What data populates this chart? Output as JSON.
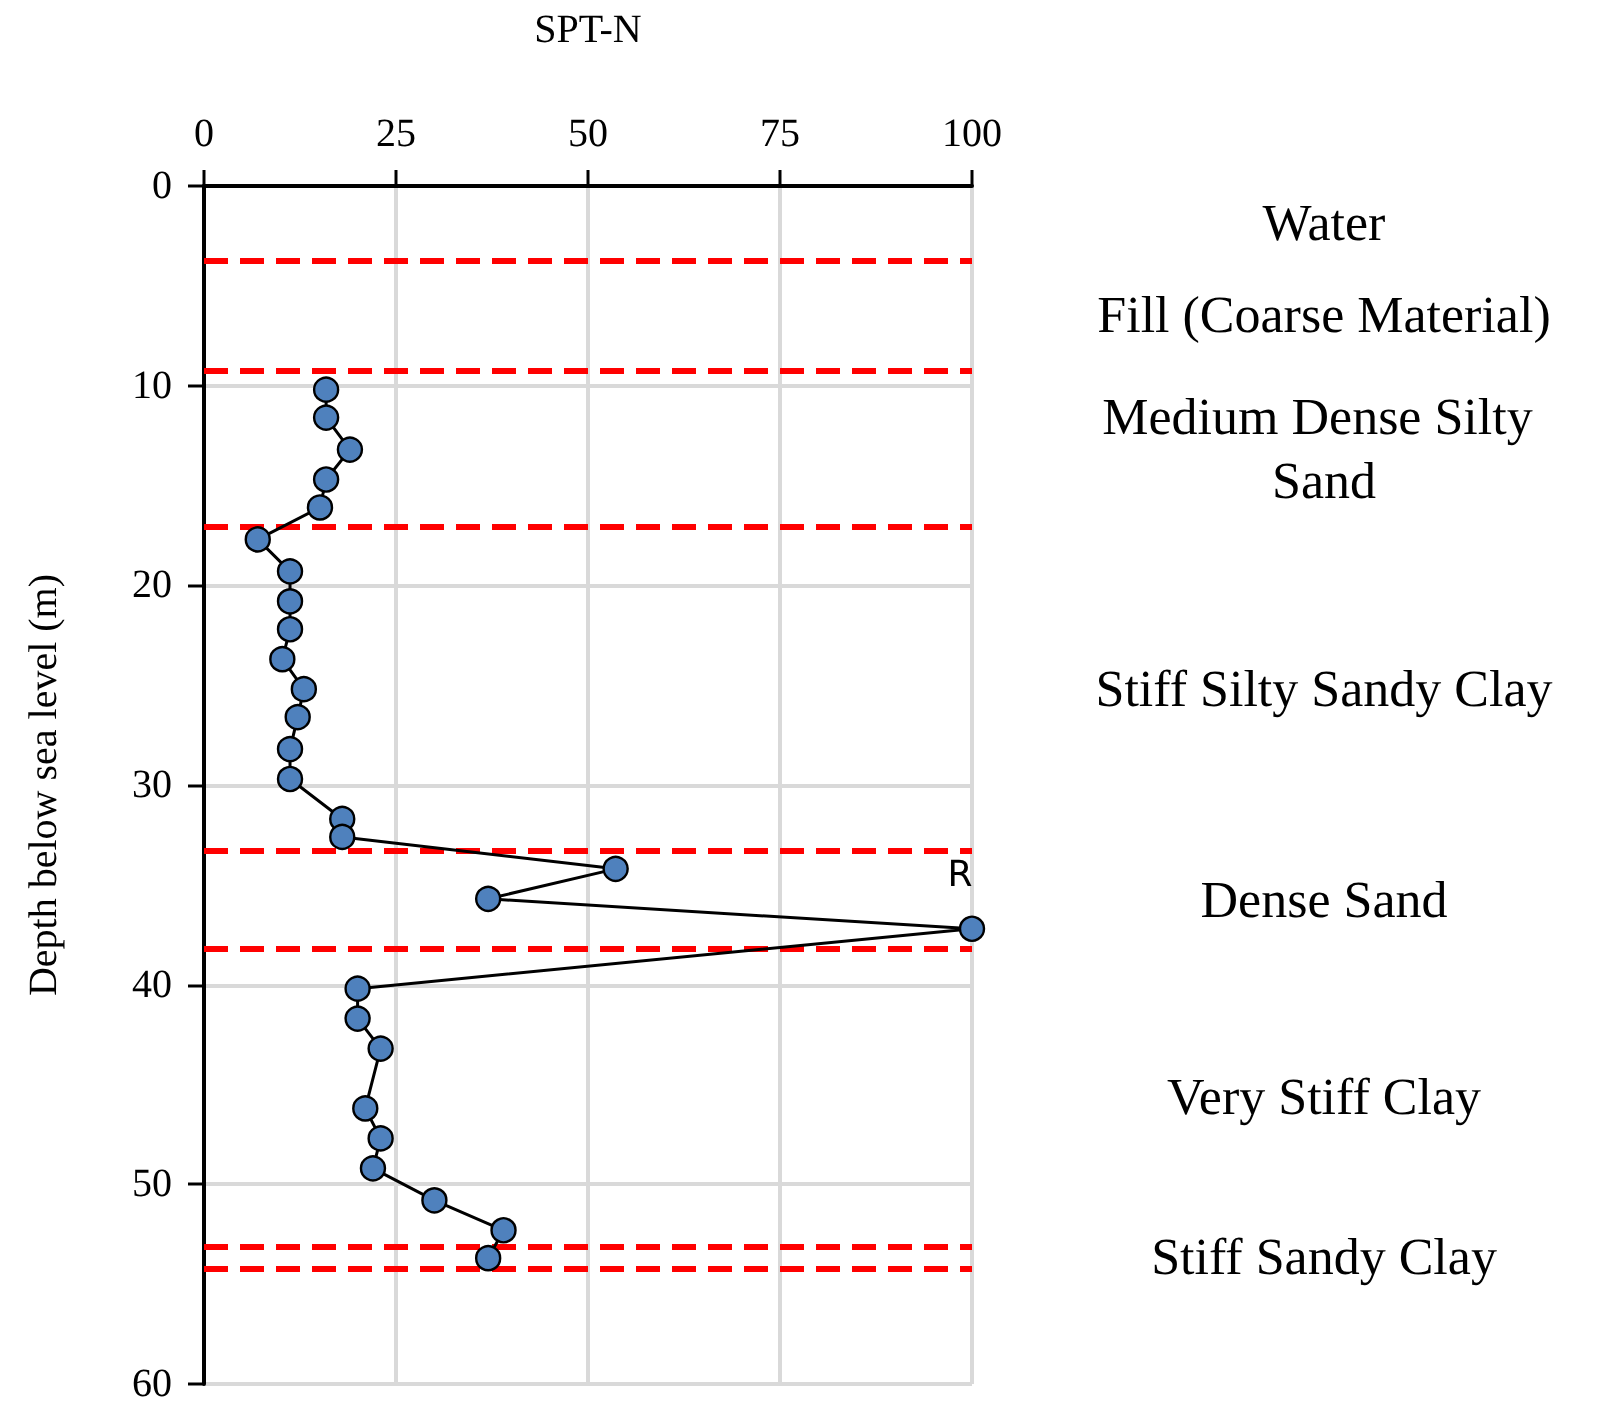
{
  "chart_data": {
    "type": "line",
    "xlabel": "SPT-N",
    "ylabel": "Depth below sea level (m)",
    "x": [
      15.9,
      15.9,
      19,
      15.9,
      15.1,
      7,
      11.2,
      11.2,
      11.2,
      10.2,
      13,
      12.2,
      11.2,
      11.2,
      18,
      18,
      53.6,
      37,
      100,
      20,
      20,
      23,
      21,
      23,
      22,
      30,
      39,
      37
    ],
    "series": [
      {
        "color": "#4f81bd",
        "values": [
          10.2,
          11.6,
          13.2,
          14.7,
          16.1,
          17.7,
          19.3,
          20.8,
          22.2,
          23.7,
          25.2,
          26.6,
          28.2,
          29.7,
          31.7,
          32.6,
          34.2,
          35.7,
          37.2,
          40.2,
          41.7,
          43.2,
          46.2,
          47.7,
          49.2,
          50.8,
          52.3,
          53.7
        ]
      }
    ],
    "xlim": [
      0,
      100
    ],
    "xticks": [
      0,
      25,
      50,
      75,
      100
    ],
    "ylim": [
      60,
      0
    ],
    "yticks": [
      0,
      10,
      20,
      30,
      40,
      50,
      60
    ],
    "grid": true,
    "marker": "circle",
    "line_style": "solid",
    "ref_lines": [
      {
        "axis": "y",
        "value": 3.7,
        "color": "#ff0000",
        "line_style": "dashed"
      },
      {
        "axis": "y",
        "value": 9.2,
        "color": "#ff0000",
        "line_style": "dashed"
      },
      {
        "axis": "y",
        "value": 17.1,
        "color": "#ff0000",
        "line_style": "dashed"
      },
      {
        "axis": "y",
        "value": 33.3,
        "color": "#ff0000",
        "line_style": "dashed"
      },
      {
        "axis": "y",
        "value": 38.2,
        "color": "#ff0000",
        "line_style": "dashed"
      },
      {
        "axis": "y",
        "value": 53.1,
        "color": "#ff0000",
        "line_style": "dashed"
      },
      {
        "axis": "y",
        "value": 54.2,
        "color": "#ff0000",
        "line_style": "dashed"
      }
    ],
    "annotations": [
      {
        "text": "R",
        "x": 100,
        "y": 37.2
      },
      "Water",
      "Fill (Coarse Material)",
      "Medium Dense Silty Sand",
      "Stiff Silty Sandy Clay",
      "Dense Sand",
      "Very Stiff Clay",
      "Stiff Sandy Clay"
    ]
  }
}
